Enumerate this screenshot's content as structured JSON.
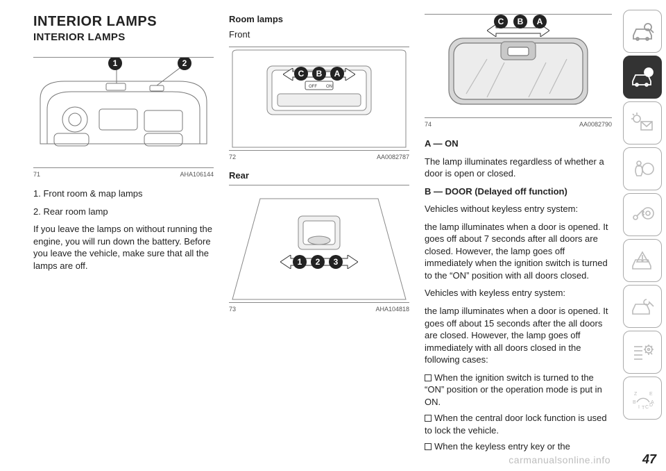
{
  "heading": "INTERIOR LAMPS",
  "subheading": "INTERIOR LAMPS",
  "page_number": "47",
  "watermark": "carmanualsonline.info",
  "col1": {
    "fig": {
      "num": "71",
      "ref": "AHA106144",
      "markers": [
        "1",
        "2"
      ]
    },
    "lines": [
      "1. Front room & map lamps",
      "2. Rear room lamp",
      "If you leave the lamps on without running the engine, you will run down the battery. Before you leave the vehicle, make sure that all the lamps are off."
    ]
  },
  "col2": {
    "h1": "Room lamps",
    "h2": "Front",
    "fig1": {
      "num": "72",
      "ref": "AA0082787",
      "markers": [
        "C",
        "B",
        "A"
      ],
      "switch_labels": [
        "OFF",
        "ON"
      ]
    },
    "h3": "Rear",
    "fig2": {
      "num": "73",
      "ref": "AHA104818",
      "markers": [
        "1",
        "2",
        "3"
      ]
    }
  },
  "col3": {
    "fig": {
      "num": "74",
      "ref": "AA0082790",
      "markers": [
        "C",
        "B",
        "A"
      ]
    },
    "blocks": [
      {
        "type": "b",
        "text": "A — ON"
      },
      {
        "type": "p",
        "text": "The lamp illuminates regardless of whether a door is open or closed."
      },
      {
        "type": "b",
        "text": "B — DOOR (Delayed off function)"
      },
      {
        "type": "p",
        "text": "Vehicles without keyless entry system:"
      },
      {
        "type": "p",
        "text": "the lamp illuminates when a door is opened. It goes off about 7 seconds after all doors are closed. However, the lamp goes off immediately when the ignition switch is turned to the “ON” position with all doors closed."
      },
      {
        "type": "p",
        "text": "Vehicles with keyless entry system:"
      },
      {
        "type": "p",
        "text": "the lamp illuminates when a door is opened. It goes off about 15 seconds after the all doors are closed. However, the lamp goes off immediately with all doors closed in the following cases:"
      },
      {
        "type": "cb",
        "text": "When the ignition switch is turned to the “ON” position or the operation mode is put in ON."
      },
      {
        "type": "cb",
        "text": "When the central door lock function is used to lock the vehicle."
      },
      {
        "type": "cb",
        "text": "When the keyless entry key or the"
      }
    ]
  },
  "sidebar": {
    "active_index": 1,
    "icons": [
      "car-search",
      "car-info",
      "light-mail",
      "airbag",
      "key-wheel",
      "car-warn",
      "car-wrench",
      "list-gear",
      "alpha-dial"
    ]
  },
  "colors": {
    "text": "#222222",
    "rule": "#888888",
    "circle": "#222222",
    "circle_text": "#ffffff",
    "sidebar_border": "#aaaaaa",
    "sidebar_active": "#333333",
    "watermark": "#bdbdbd"
  }
}
